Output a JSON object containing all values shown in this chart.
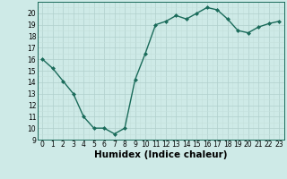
{
  "x": [
    0,
    1,
    2,
    3,
    4,
    5,
    6,
    7,
    8,
    9,
    10,
    11,
    12,
    13,
    14,
    15,
    16,
    17,
    18,
    19,
    20,
    21,
    22,
    23
  ],
  "y": [
    16.0,
    15.2,
    14.1,
    13.0,
    11.0,
    10.0,
    10.0,
    9.5,
    10.0,
    14.2,
    16.5,
    19.0,
    19.3,
    19.8,
    19.5,
    20.0,
    20.5,
    20.3,
    19.5,
    18.5,
    18.3,
    18.8,
    19.1,
    19.3
  ],
  "line_color": "#1a6b5a",
  "marker": "D",
  "marker_size": 2.0,
  "bg_color": "#ceeae7",
  "grid_major_color": "#b0d0cc",
  "grid_minor_color": "#c4e0dc",
  "xlabel": "Humidex (Indice chaleur)",
  "xlim": [
    -0.5,
    23.5
  ],
  "ylim": [
    9,
    21
  ],
  "yticks": [
    9,
    10,
    11,
    12,
    13,
    14,
    15,
    16,
    17,
    18,
    19,
    20
  ],
  "xticks": [
    0,
    1,
    2,
    3,
    4,
    5,
    6,
    7,
    8,
    9,
    10,
    11,
    12,
    13,
    14,
    15,
    16,
    17,
    18,
    19,
    20,
    21,
    22,
    23
  ],
  "tick_fontsize": 5.5,
  "xlabel_fontsize": 7.5,
  "linewidth": 1.0
}
